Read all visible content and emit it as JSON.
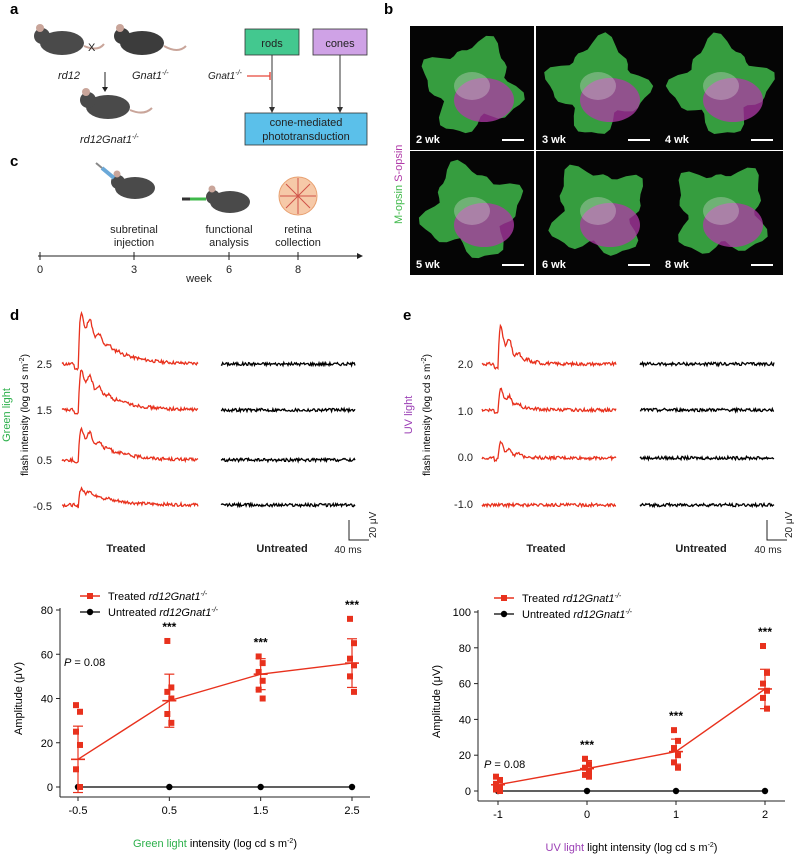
{
  "panels": {
    "a": "a",
    "b": "b",
    "c": "c",
    "d": "d",
    "e": "e"
  },
  "panel_a": {
    "mouse1": "rd12",
    "cross": "X",
    "mouse2": "Gnat1",
    "mouse2_sup": "-/-",
    "offspring": "rd12Gnat1",
    "offspring_sup": "-/-",
    "rods": "rods",
    "cones": "cones",
    "inhibitor": "Gnat1",
    "inhibitor_sup": "-/-",
    "pathway_line1": "cone-mediated",
    "pathway_line2": "phototransduction",
    "colors": {
      "rods": "#43c88f",
      "cones": "#cfa2e6",
      "pathway": "#5bc0ea",
      "inhibit": "#e8473b"
    }
  },
  "panel_b": {
    "ylabel_green": "M-opsin",
    "ylabel_purple": "S-opsin",
    "tiles": [
      "2 wk",
      "3 wk",
      "4 wk",
      "5 wk",
      "6 wk",
      "8 wk"
    ],
    "colors": {
      "green": "#3fb84a",
      "purple": "#b03aa8"
    }
  },
  "panel_c": {
    "steps": [
      {
        "line1": "subretinal",
        "line2": "injection"
      },
      {
        "line1": "functional",
        "line2": "analysis"
      },
      {
        "line1": "retina",
        "line2": "collection"
      }
    ],
    "ticks": [
      "0",
      "3",
      "6",
      "8"
    ],
    "axis_label": "week"
  },
  "panel_d": {
    "light_label": "Green light",
    "ylabel": "flash intensity (log cd s m",
    "ylabel_sup": "-2",
    "ylabel_end": ")",
    "intensities": [
      "2.5",
      "1.5",
      "0.5",
      "-0.5"
    ],
    "treated": "Treated",
    "untreated": "Untreated",
    "scale_time": "40 ms",
    "scale_amp": "20 μV"
  },
  "panel_e": {
    "light_label": "UV light",
    "ylabel": "flash intensity (log cd s m",
    "ylabel_sup": "-2",
    "ylabel_end": ")",
    "intensities": [
      "2.0",
      "1.0",
      "0.0",
      "-1.0"
    ],
    "treated": "Treated",
    "untreated": "Untreated",
    "scale_time": "40 ms",
    "scale_amp": "20 μV"
  },
  "colors": {
    "treated": "#e8311d",
    "untreated": "#000000",
    "green_text": "#2db04b",
    "uv_text": "#9b3fb5"
  },
  "chart_data": [
    {
      "type": "line",
      "legend_treated": "Treated ",
      "legend_untreated": "Untreated ",
      "legend_geno": "rd12Gnat1",
      "legend_sup": "-/-",
      "categories": [
        "-0.5",
        "0.5",
        "1.5",
        "2.5"
      ],
      "x": [
        -0.5,
        0.5,
        1.5,
        2.5
      ],
      "xlabel_colored": "Green light",
      "xlabel_rest": " intensity (log cd s m",
      "xlabel_sup": "-2",
      "xlabel_end": ")",
      "ylabel": "Amplitude (μV)",
      "ylim": [
        0,
        80
      ],
      "yticks": [
        "0",
        "20",
        "40",
        "60",
        "80"
      ],
      "series": [
        {
          "name": "Treated rd12Gnat1-/-",
          "values": [
            12.5,
            39,
            51,
            56
          ],
          "err": [
            15,
            12,
            7,
            11
          ],
          "points": [
            [
              37,
              34,
              25,
              19,
              8,
              0
            ],
            [
              66,
              45,
              43,
              40,
              33,
              29
            ],
            [
              59,
              56,
              52,
              48,
              44,
              40
            ],
            [
              76,
              65,
              58,
              55,
              50,
              43
            ]
          ]
        },
        {
          "name": "Untreated rd12Gnat1-/-",
          "values": [
            0,
            0,
            0,
            0
          ]
        }
      ],
      "annotations": [
        "P = 0.08",
        "***",
        "***",
        "***"
      ]
    },
    {
      "type": "line",
      "legend_treated": "Treated ",
      "legend_untreated": "Untreated ",
      "legend_geno": "rd12Gnat1",
      "legend_sup": "-/-",
      "categories": [
        "-1",
        "0",
        "1",
        "2"
      ],
      "x": [
        -1,
        0,
        1,
        2
      ],
      "xlabel_colored": "UV light",
      "xlabel_rest": " light intensity (log cd s m",
      "xlabel_sup": "-2",
      "xlabel_end": ")",
      "ylabel": "Amplitude (μV)",
      "ylim": [
        0,
        100
      ],
      "yticks": [
        "0",
        "20",
        "40",
        "60",
        "80",
        "100"
      ],
      "series": [
        {
          "name": "Treated rd12Gnat1-/-",
          "values": [
            3.5,
            12.5,
            22,
            57
          ],
          "err": [
            4,
            4.5,
            7,
            11
          ],
          "points": [
            [
              8,
              6,
              4,
              2,
              1,
              0
            ],
            [
              18,
              15,
              13,
              11,
              9,
              8
            ],
            [
              34,
              28,
              24,
              20,
              16,
              13
            ],
            [
              81,
              66,
              60,
              56,
              52,
              46
            ]
          ]
        },
        {
          "name": "Untreated rd12Gnat1-/-",
          "values": [
            0,
            0,
            0,
            0
          ]
        }
      ],
      "annotations": [
        "P = 0.08",
        "***",
        "***",
        "***"
      ]
    }
  ]
}
